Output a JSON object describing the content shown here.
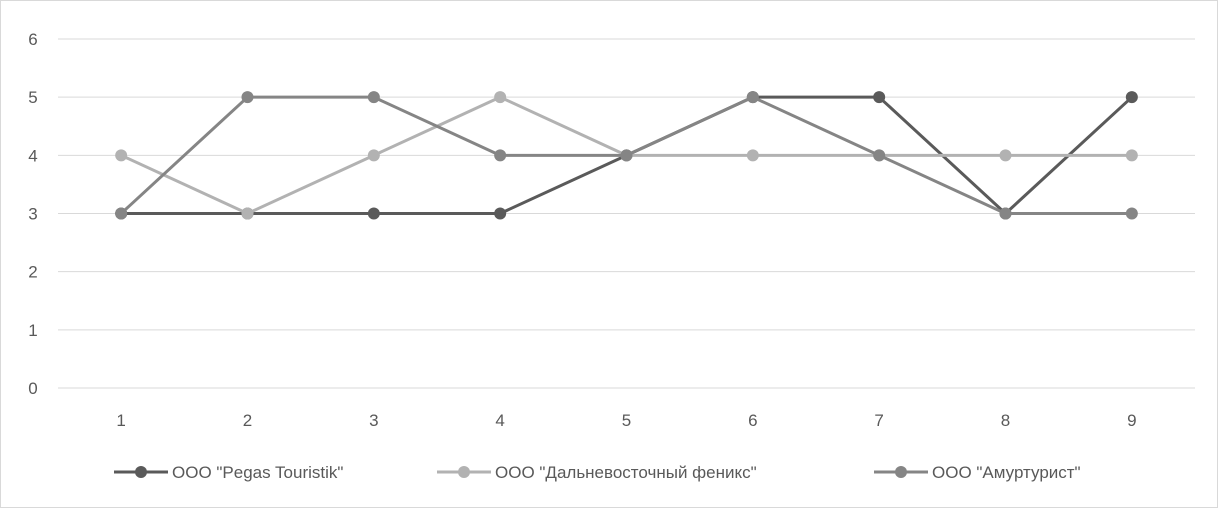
{
  "chart_data": {
    "type": "line",
    "title": "",
    "xlabel": "",
    "ylabel": "",
    "categories": [
      "1",
      "2",
      "3",
      "4",
      "5",
      "6",
      "7",
      "8",
      "9"
    ],
    "ylim": [
      0,
      6
    ],
    "yticks": [
      "0",
      "1",
      "2",
      "3",
      "4",
      "5",
      "6"
    ],
    "grid": true,
    "legend_position": "bottom",
    "series": [
      {
        "name": "ООО \"Pegas Touristik\"",
        "color": "#5a5a5a",
        "values": [
          3,
          3,
          3,
          3,
          4,
          5,
          5,
          3,
          5
        ]
      },
      {
        "name": "ООО \"Дальневосточный феникс\"",
        "color": "#b2b2b2",
        "values": [
          4,
          3,
          4,
          5,
          4,
          4,
          4,
          4,
          4
        ]
      },
      {
        "name": "ООО \"Амуртурист\"",
        "color": "#858585",
        "values": [
          3,
          5,
          5,
          4,
          4,
          5,
          4,
          3,
          3
        ]
      }
    ]
  }
}
